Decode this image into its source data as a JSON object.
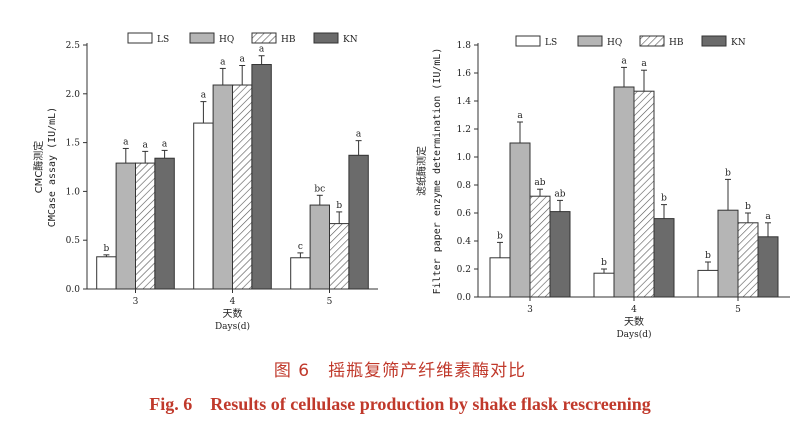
{
  "caption": {
    "cn": "图 6　摇瓶复筛产纤维素酶对比",
    "en": "Fig. 6　Results of cellulase production by shake flask rescreening"
  },
  "colors": {
    "LS": "#ffffff",
    "HQ": "#b5b5b5",
    "HB": "#ffffff",
    "KN": "#6b6b6b",
    "stroke": "#333333"
  },
  "chart_data": [
    {
      "type": "bar",
      "categories": [
        "3",
        "4",
        "5"
      ],
      "xlabel_cn": "天数",
      "xlabel": "Days(d)",
      "ylabel_cn": "CMC酶测定",
      "ylabel": "CMCase assay (IU/mL)",
      "ylim": [
        0,
        2.5
      ],
      "yticks": [
        "0.0",
        "0.5",
        "1.0",
        "1.5",
        "2.0",
        "2.5"
      ],
      "legend": "top",
      "series": [
        {
          "name": "LS",
          "pattern": "white",
          "values": [
            0.33,
            1.7,
            0.32
          ],
          "errors": [
            0.02,
            0.22,
            0.05
          ],
          "sig": [
            "b",
            "a",
            "c"
          ]
        },
        {
          "name": "HQ",
          "pattern": "light",
          "values": [
            1.29,
            2.09,
            0.86
          ],
          "errors": [
            0.15,
            0.17,
            0.1
          ],
          "sig": [
            "a",
            "a",
            "bc"
          ]
        },
        {
          "name": "HB",
          "pattern": "hatch",
          "values": [
            1.29,
            2.09,
            0.67
          ],
          "errors": [
            0.12,
            0.2,
            0.12
          ],
          "sig": [
            "a",
            "a",
            "b"
          ]
        },
        {
          "name": "KN",
          "pattern": "dark",
          "values": [
            1.34,
            2.3,
            1.37
          ],
          "errors": [
            0.08,
            0.09,
            0.15
          ],
          "sig": [
            "a",
            "a",
            "a"
          ]
        }
      ]
    },
    {
      "type": "bar",
      "categories": [
        "3",
        "4",
        "5"
      ],
      "xlabel_cn": "天数",
      "xlabel": "Days(d)",
      "ylabel_cn": "滤纸酶测定",
      "ylabel": "Filter paper enzyme determination (IU/mL)",
      "ylim": [
        0,
        1.8
      ],
      "yticks": [
        "0.0",
        "0.2",
        "0.4",
        "0.6",
        "0.8",
        "1.0",
        "1.2",
        "1.4",
        "1.6",
        "1.8"
      ],
      "legend": "top",
      "series": [
        {
          "name": "LS",
          "pattern": "white",
          "values": [
            0.28,
            0.17,
            0.19
          ],
          "errors": [
            0.11,
            0.03,
            0.06
          ],
          "sig": [
            "b",
            "b",
            "b"
          ]
        },
        {
          "name": "HQ",
          "pattern": "light",
          "values": [
            1.1,
            1.5,
            0.62
          ],
          "errors": [
            0.15,
            0.14,
            0.22
          ],
          "sig": [
            "a",
            "a",
            "b"
          ]
        },
        {
          "name": "HB",
          "pattern": "hatch",
          "values": [
            0.72,
            1.47,
            0.53
          ],
          "errors": [
            0.05,
            0.15,
            0.07
          ],
          "sig": [
            "ab",
            "a",
            "b"
          ]
        },
        {
          "name": "KN",
          "pattern": "dark",
          "values": [
            0.61,
            0.56,
            0.43
          ],
          "errors": [
            0.08,
            0.1,
            0.1
          ],
          "sig": [
            "ab",
            "b",
            "a"
          ]
        }
      ]
    }
  ]
}
